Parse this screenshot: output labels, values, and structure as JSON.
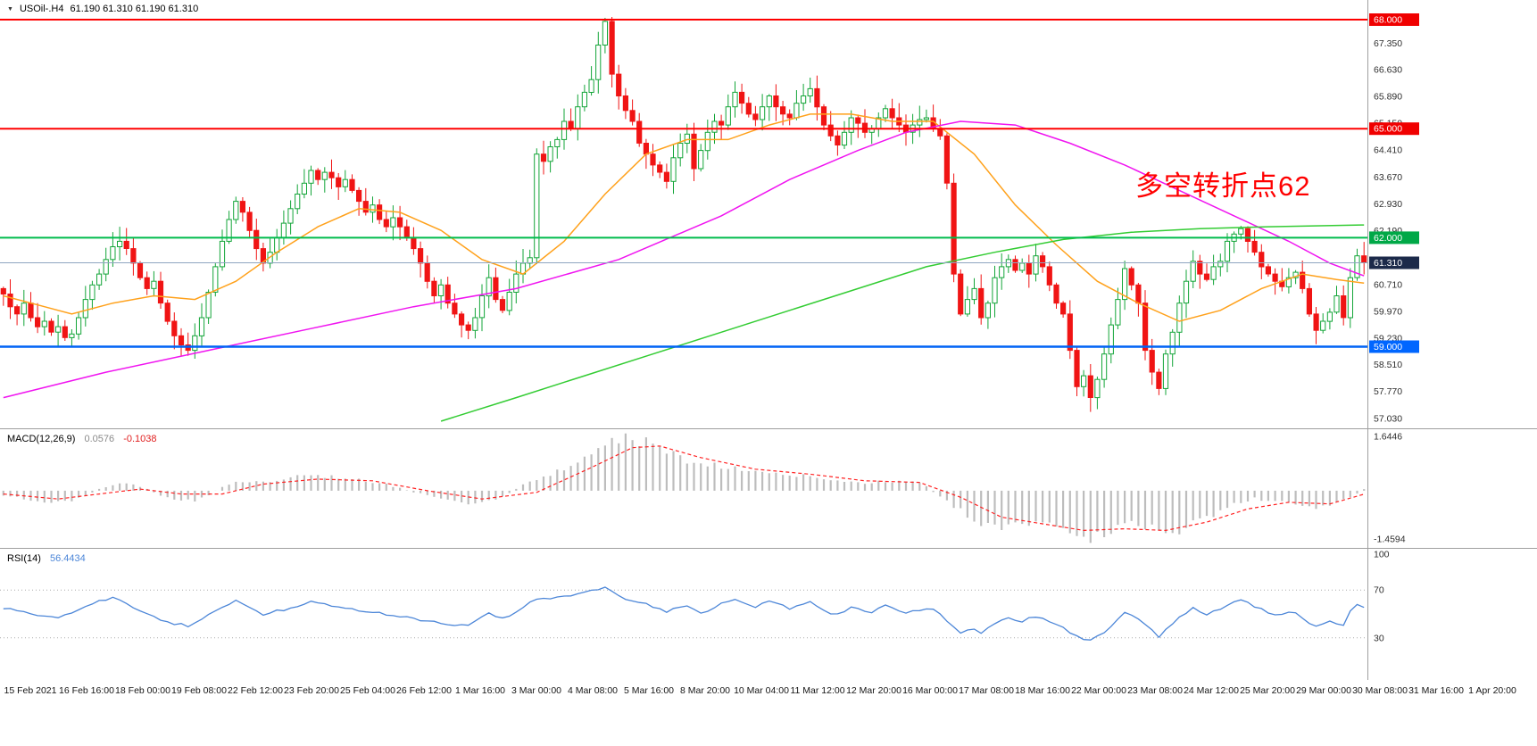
{
  "window": {
    "symbol_marker": "▼",
    "title_symbol": "USOil-.H4",
    "title_ohlc": "61.190 61.310 61.190 61.310"
  },
  "annotation": {
    "text": "多空转折点62",
    "color": "#FF0000"
  },
  "time_axis": {
    "labels": [
      "15 Feb 2021",
      "16 Feb 16:00",
      "18 Feb 00:00",
      "19 Feb 08:00",
      "22 Feb 12:00",
      "23 Feb 20:00",
      "25 Feb 04:00",
      "26 Feb 12:00",
      "1 Mar 16:00",
      "3 Mar 00:00",
      "4 Mar 08:00",
      "5 Mar 16:00",
      "8 Mar 20:00",
      "10 Mar 04:00",
      "11 Mar 12:00",
      "12 Mar 20:00",
      "16 Mar 00:00",
      "17 Mar 08:00",
      "18 Mar 16:00",
      "22 Mar 00:00",
      "23 Mar 08:00",
      "24 Mar 12:00",
      "25 Mar 20:00",
      "29 Mar 00:00",
      "30 Mar 08:00",
      "31 Mar 16:00",
      "1 Apr 20:00"
    ]
  },
  "chart_data": [
    {
      "type": "candlestick",
      "title": "USOil-.H4",
      "timeframe": "H4",
      "ylim": [
        56.73,
        68.54
      ],
      "y_ticks": [
        67.35,
        66.63,
        65.89,
        65.15,
        64.41,
        63.67,
        62.93,
        62.19,
        60.71,
        59.97,
        59.23,
        58.51,
        57.77,
        57.03
      ],
      "first_open": 60.6,
      "closes": [
        60.45,
        60.1,
        59.9,
        60.2,
        59.8,
        59.55,
        59.7,
        59.4,
        59.55,
        59.25,
        59.35,
        59.8,
        60.3,
        60.7,
        61.0,
        61.4,
        61.75,
        61.9,
        61.7,
        61.3,
        60.9,
        60.6,
        60.8,
        60.2,
        59.7,
        59.3,
        59.05,
        58.9,
        59.3,
        59.8,
        60.5,
        61.2,
        61.9,
        62.5,
        63.0,
        62.7,
        62.2,
        61.7,
        61.3,
        61.6,
        62.0,
        62.4,
        62.8,
        63.2,
        63.5,
        63.85,
        63.6,
        63.8,
        63.65,
        63.4,
        63.6,
        63.3,
        63.0,
        62.7,
        62.9,
        62.5,
        62.3,
        62.55,
        62.3,
        62.0,
        61.7,
        61.3,
        60.8,
        60.4,
        60.7,
        60.2,
        59.9,
        59.6,
        59.45,
        59.8,
        60.4,
        60.9,
        60.3,
        60.0,
        60.5,
        61.0,
        61.3,
        61.45,
        64.3,
        64.1,
        64.5,
        64.7,
        65.2,
        65.0,
        65.6,
        66.0,
        66.35,
        67.3,
        67.95,
        66.5,
        65.9,
        65.5,
        65.2,
        64.6,
        64.3,
        64.0,
        63.8,
        63.55,
        64.2,
        64.6,
        64.85,
        63.9,
        64.4,
        64.9,
        65.2,
        65.1,
        65.6,
        66.0,
        65.7,
        65.4,
        65.25,
        65.6,
        65.9,
        65.6,
        65.4,
        65.3,
        65.7,
        65.9,
        66.1,
        65.6,
        65.1,
        64.8,
        64.55,
        64.9,
        65.3,
        65.15,
        64.9,
        65.0,
        65.3,
        65.55,
        65.3,
        65.1,
        64.9,
        65.1,
        65.25,
        65.3,
        65.0,
        64.8,
        63.5,
        61.0,
        59.9,
        60.3,
        60.6,
        59.8,
        60.2,
        60.9,
        61.2,
        61.4,
        61.1,
        61.3,
        61.0,
        61.5,
        61.2,
        60.7,
        60.2,
        59.9,
        58.9,
        57.9,
        58.2,
        57.6,
        58.1,
        58.8,
        59.6,
        60.3,
        61.15,
        60.7,
        60.2,
        58.9,
        58.3,
        57.85,
        58.8,
        59.4,
        60.2,
        60.8,
        61.35,
        61.0,
        60.85,
        61.2,
        61.35,
        61.9,
        62.1,
        62.25,
        61.9,
        61.6,
        61.2,
        61.0,
        60.8,
        60.65,
        60.9,
        61.05,
        60.6,
        59.9,
        59.45,
        59.7,
        59.95,
        60.4,
        59.8,
        60.9,
        61.5,
        61.31
      ],
      "colors": {
        "up": "#13A538",
        "down": "#F01414"
      },
      "moving_averages": [
        {
          "name": "ma-fast-orange",
          "color": "#FFA11B",
          "points": [
            [
              0,
              60.4
            ],
            [
              6,
              60.1
            ],
            [
              10,
              59.9
            ],
            [
              16,
              60.2
            ],
            [
              22,
              60.4
            ],
            [
              28,
              60.3
            ],
            [
              34,
              60.8
            ],
            [
              40,
              61.6
            ],
            [
              46,
              62.3
            ],
            [
              52,
              62.8
            ],
            [
              58,
              62.7
            ],
            [
              64,
              62.2
            ],
            [
              70,
              61.4
            ],
            [
              76,
              61.0
            ],
            [
              82,
              61.9
            ],
            [
              88,
              63.2
            ],
            [
              94,
              64.3
            ],
            [
              100,
              64.7
            ],
            [
              106,
              64.7
            ],
            [
              112,
              65.1
            ],
            [
              118,
              65.4
            ],
            [
              124,
              65.4
            ],
            [
              130,
              65.2
            ],
            [
              136,
              65.2
            ],
            [
              142,
              64.3
            ],
            [
              148,
              62.9
            ],
            [
              154,
              61.8
            ],
            [
              160,
              60.8
            ],
            [
              166,
              60.2
            ],
            [
              172,
              59.7
            ],
            [
              178,
              60.0
            ],
            [
              184,
              60.6
            ],
            [
              190,
              61.0
            ],
            [
              195,
              60.85
            ],
            [
              199,
              60.75
            ]
          ]
        },
        {
          "name": "ma-mid-magenta",
          "color": "#F014F0",
          "points": [
            [
              0,
              57.6
            ],
            [
              15,
              58.3
            ],
            [
              30,
              58.9
            ],
            [
              45,
              59.5
            ],
            [
              60,
              60.1
            ],
            [
              75,
              60.6
            ],
            [
              90,
              61.4
            ],
            [
              105,
              62.6
            ],
            [
              115,
              63.6
            ],
            [
              125,
              64.4
            ],
            [
              132,
              64.9
            ],
            [
              140,
              65.2
            ],
            [
              148,
              65.1
            ],
            [
              156,
              64.6
            ],
            [
              164,
              64.0
            ],
            [
              172,
              63.3
            ],
            [
              180,
              62.6
            ],
            [
              188,
              61.9
            ],
            [
              194,
              61.3
            ],
            [
              199,
              60.95
            ]
          ]
        },
        {
          "name": "ma-slow-green",
          "color": "#33CC33",
          "points": [
            [
              64,
              56.95
            ],
            [
              75,
              57.6
            ],
            [
              85,
              58.2
            ],
            [
              95,
              58.8
            ],
            [
              105,
              59.4
            ],
            [
              115,
              60.0
            ],
            [
              125,
              60.6
            ],
            [
              135,
              61.2
            ],
            [
              145,
              61.6
            ],
            [
              155,
              61.95
            ],
            [
              165,
              62.15
            ],
            [
              175,
              62.25
            ],
            [
              185,
              62.3
            ],
            [
              199,
              62.35
            ]
          ]
        }
      ],
      "hlines": [
        {
          "price": 68.0,
          "color": "#FF0000",
          "width": 2,
          "badge": "68.000",
          "badge_color": "#F00000"
        },
        {
          "price": 65.0,
          "color": "#FF0000",
          "width": 2,
          "badge": "65.000",
          "badge_color": "#F00000"
        },
        {
          "price": 62.0,
          "color": "#00BB4C",
          "width": 2,
          "badge": "62.000",
          "badge_color": "#00A847"
        },
        {
          "price": 59.0,
          "color": "#0063F5",
          "width": 2.5,
          "badge": "59.000",
          "badge_color": "#0066FF"
        },
        {
          "price": 61.31,
          "color": "#8FA6C0",
          "width": 1,
          "badge": "61.310",
          "badge_color": "#1C2A4A"
        }
      ]
    },
    {
      "type": "macd",
      "label": "MACD(12,26,9)",
      "value_main": "0.0576",
      "value_signal": "-0.1038",
      "ylim": [
        -1.62,
        1.75
      ],
      "axis_labels": [
        {
          "value": 1.6446,
          "text": "1.6446"
        },
        {
          "value": -1.4594,
          "text": "-1.4594"
        }
      ],
      "colors": {
        "histogram": "#BDBDBD",
        "signal": "#FF2222"
      },
      "main_points": [
        [
          0,
          -0.15
        ],
        [
          6,
          -0.35
        ],
        [
          10,
          -0.3
        ],
        [
          14,
          0.05
        ],
        [
          18,
          0.25
        ],
        [
          24,
          -0.2
        ],
        [
          28,
          -0.35
        ],
        [
          34,
          0.3
        ],
        [
          38,
          0.25
        ],
        [
          44,
          0.45
        ],
        [
          50,
          0.4
        ],
        [
          56,
          0.2
        ],
        [
          62,
          -0.15
        ],
        [
          68,
          -0.4
        ],
        [
          72,
          -0.25
        ],
        [
          78,
          0.35
        ],
        [
          84,
          0.8
        ],
        [
          88,
          1.35
        ],
        [
          91,
          1.6446
        ],
        [
          94,
          1.5
        ],
        [
          98,
          1.1
        ],
        [
          102,
          0.8
        ],
        [
          106,
          0.7
        ],
        [
          110,
          0.6
        ],
        [
          114,
          0.5
        ],
        [
          118,
          0.45
        ],
        [
          122,
          0.3
        ],
        [
          126,
          0.25
        ],
        [
          130,
          0.3
        ],
        [
          134,
          0.25
        ],
        [
          138,
          -0.3
        ],
        [
          142,
          -0.9
        ],
        [
          146,
          -1.1
        ],
        [
          150,
          -1.0
        ],
        [
          154,
          -1.05
        ],
        [
          158,
          -1.4594
        ],
        [
          161,
          -1.35
        ],
        [
          164,
          -1.0
        ],
        [
          168,
          -1.15
        ],
        [
          171,
          -1.3
        ],
        [
          175,
          -0.9
        ],
        [
          179,
          -0.5
        ],
        [
          183,
          -0.25
        ],
        [
          187,
          -0.3
        ],
        [
          191,
          -0.5
        ],
        [
          194,
          -0.45
        ],
        [
          197,
          -0.2
        ],
        [
          199,
          0.0576
        ]
      ],
      "signal_points": [
        [
          0,
          -0.1
        ],
        [
          8,
          -0.25
        ],
        [
          14,
          -0.1
        ],
        [
          20,
          0.05
        ],
        [
          26,
          -0.1
        ],
        [
          32,
          -0.1
        ],
        [
          38,
          0.2
        ],
        [
          46,
          0.35
        ],
        [
          54,
          0.3
        ],
        [
          62,
          0.0
        ],
        [
          70,
          -0.25
        ],
        [
          78,
          -0.05
        ],
        [
          86,
          0.7
        ],
        [
          92,
          1.3
        ],
        [
          96,
          1.35
        ],
        [
          102,
          1.0
        ],
        [
          110,
          0.65
        ],
        [
          118,
          0.5
        ],
        [
          126,
          0.3
        ],
        [
          134,
          0.25
        ],
        [
          140,
          -0.2
        ],
        [
          146,
          -0.8
        ],
        [
          152,
          -1.0
        ],
        [
          158,
          -1.2
        ],
        [
          164,
          -1.15
        ],
        [
          170,
          -1.2
        ],
        [
          176,
          -0.95
        ],
        [
          182,
          -0.55
        ],
        [
          188,
          -0.35
        ],
        [
          194,
          -0.4
        ],
        [
          199,
          -0.1038
        ]
      ]
    },
    {
      "type": "line",
      "label": "RSI(14)",
      "value": "56.4434",
      "ylim": [
        0,
        100
      ],
      "levels": [
        70,
        30
      ],
      "axis_labels": [
        {
          "value": 100,
          "text": "100"
        },
        {
          "value": 70,
          "text": "70"
        },
        {
          "value": 30,
          "text": "30"
        }
      ],
      "color": "#4C86D8",
      "points": [
        [
          0,
          55
        ],
        [
          4,
          50
        ],
        [
          8,
          46
        ],
        [
          12,
          57
        ],
        [
          16,
          64
        ],
        [
          20,
          52
        ],
        [
          24,
          43
        ],
        [
          27,
          40
        ],
        [
          31,
          52
        ],
        [
          34,
          61
        ],
        [
          38,
          50
        ],
        [
          42,
          55
        ],
        [
          45,
          60
        ],
        [
          48,
          57
        ],
        [
          52,
          53
        ],
        [
          56,
          50
        ],
        [
          60,
          46
        ],
        [
          64,
          42
        ],
        [
          68,
          40
        ],
        [
          71,
          50
        ],
        [
          73,
          46
        ],
        [
          76,
          55
        ],
        [
          78,
          63
        ],
        [
          82,
          64
        ],
        [
          86,
          69
        ],
        [
          88,
          73
        ],
        [
          91,
          62
        ],
        [
          94,
          58
        ],
        [
          97,
          52
        ],
        [
          100,
          57
        ],
        [
          102,
          50
        ],
        [
          105,
          58
        ],
        [
          107,
          62
        ],
        [
          110,
          56
        ],
        [
          112,
          60
        ],
        [
          115,
          55
        ],
        [
          118,
          61
        ],
        [
          120,
          53
        ],
        [
          122,
          49
        ],
        [
          124,
          55
        ],
        [
          127,
          52
        ],
        [
          129,
          57
        ],
        [
          132,
          51
        ],
        [
          135,
          55
        ],
        [
          137,
          51
        ],
        [
          139,
          38
        ],
        [
          140,
          33
        ],
        [
          142,
          38
        ],
        [
          143,
          33
        ],
        [
          145,
          42
        ],
        [
          147,
          46
        ],
        [
          149,
          44
        ],
        [
          151,
          48
        ],
        [
          153,
          43
        ],
        [
          155,
          39
        ],
        [
          157,
          31
        ],
        [
          159,
          28
        ],
        [
          161,
          35
        ],
        [
          163,
          45
        ],
        [
          164,
          52
        ],
        [
          166,
          45
        ],
        [
          168,
          37
        ],
        [
          169,
          31
        ],
        [
          170,
          38
        ],
        [
          172,
          47
        ],
        [
          174,
          55
        ],
        [
          176,
          50
        ],
        [
          178,
          54
        ],
        [
          180,
          60
        ],
        [
          181,
          62
        ],
        [
          183,
          56
        ],
        [
          185,
          51
        ],
        [
          187,
          49
        ],
        [
          189,
          52
        ],
        [
          191,
          42
        ],
        [
          192,
          39
        ],
        [
          194,
          44
        ],
        [
          196,
          40
        ],
        [
          197,
          52
        ],
        [
          198,
          58
        ],
        [
          199,
          56.44
        ]
      ]
    }
  ]
}
